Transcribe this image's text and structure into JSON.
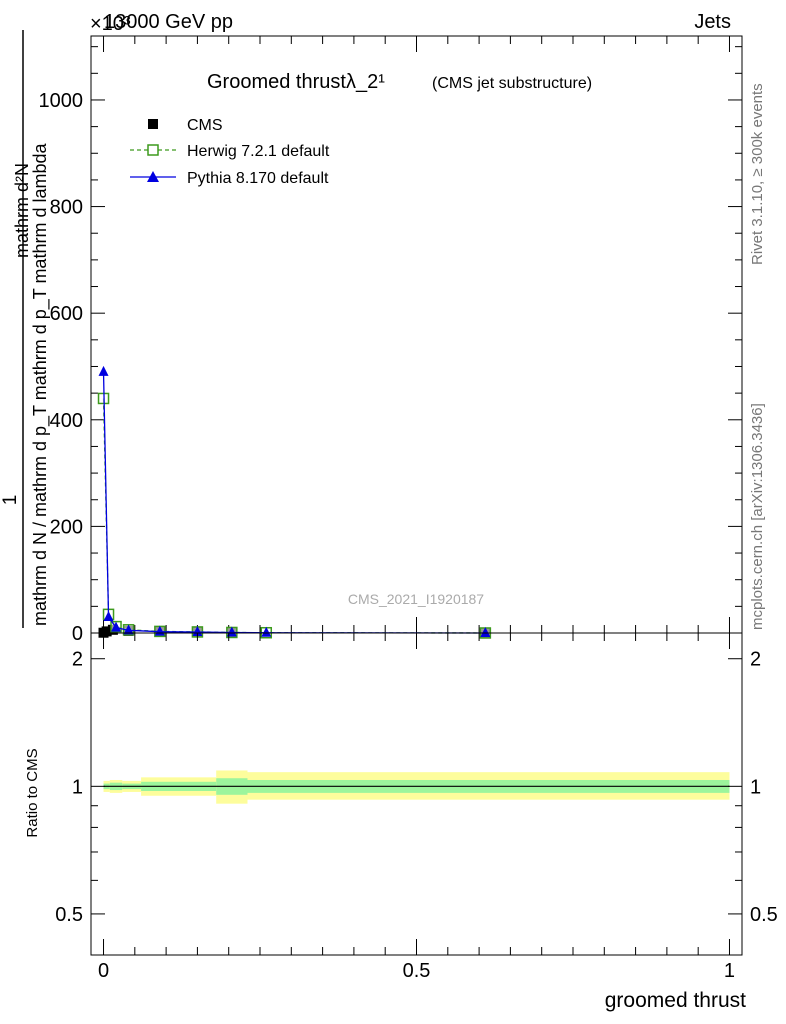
{
  "header": {
    "process": "13000 GeV pp",
    "category": "Jets",
    "exponent": "×10³"
  },
  "side_labels": {
    "rivet": "Rivet 3.1.10, ≥ 300k events",
    "mcplots": "mcplots.cern.ch [arXiv:1306.3436]"
  },
  "watermark": "CMS_2021_I1920187",
  "y_axis_title": {
    "numerator": "1",
    "denominator": "mathrm d N / mathrm d p_T mathrm d p_T mathrm d lambda",
    "top_expr": "mathrm d²N"
  },
  "colors": {
    "cms": "#000000",
    "herwig": "#3d9a1d",
    "pythia": "#0000e0",
    "band_outer": "#fdfd9c",
    "band_inner": "#9cf59c"
  },
  "chart_data": [
    {
      "type": "line",
      "panel": "main",
      "title_main": "Groomed thrustλ_2¹",
      "title_sub": "(CMS jet substructure)",
      "xlabel": "groomed thrust",
      "ylabel": "1 / (mathrm d N / mathrm d p_T mathrm d p_T mathrm d lambda) mathrm d²N",
      "xlim": [
        -0.02,
        1.02
      ],
      "ylim": [
        0,
        1120
      ],
      "y_scale_note": "values ×10³",
      "x_ticks": [
        0,
        0.5,
        1
      ],
      "x_tick_labels": [
        "0",
        "0.5",
        "1"
      ],
      "y_ticks": [
        0,
        200,
        400,
        600,
        800,
        1000
      ],
      "y_tick_labels": [
        "0",
        "200",
        "400",
        "600",
        "800",
        "1000"
      ],
      "legend": [
        "CMS",
        "Herwig 7.2.1 default",
        "Pythia 8.170 default"
      ],
      "series": [
        {
          "name": "CMS",
          "style": "marker-only",
          "x": [
            0.0,
            0.005,
            0.015,
            0.04,
            0.09,
            0.15,
            0.205,
            0.61
          ],
          "y": [
            0.5,
            3,
            6,
            4,
            2,
            1.5,
            0.6,
            0.05
          ]
        },
        {
          "name": "Herwig 7.2.1 default",
          "style": "dashed-open-square",
          "x": [
            0.0,
            0.008,
            0.02,
            0.04,
            0.09,
            0.15,
            0.205,
            0.26,
            0.61
          ],
          "y": [
            440,
            35,
            12,
            6,
            3,
            2,
            1,
            0.5,
            0.05
          ]
        },
        {
          "name": "Pythia 8.170 default",
          "style": "solid-triangle",
          "x": [
            0.0,
            0.008,
            0.02,
            0.04,
            0.09,
            0.15,
            0.205,
            0.26,
            0.61
          ],
          "y": [
            490,
            30,
            10,
            5,
            2.5,
            1.8,
            1,
            0.4,
            0.05
          ]
        }
      ]
    },
    {
      "type": "area",
      "panel": "ratio",
      "ylabel": "Ratio to CMS",
      "xlim": [
        -0.02,
        1.02
      ],
      "ylim": [
        0.4,
        2.3
      ],
      "y_scale": "log",
      "y_ticks": [
        0.5,
        1,
        2
      ],
      "y_tick_labels": [
        "0.5",
        "1",
        "2"
      ],
      "x_ticks": [
        0,
        0.5,
        1
      ],
      "x_tick_labels": [
        "0",
        "0.5",
        "1"
      ],
      "bins": [
        {
          "x0": 0.0,
          "x1": 0.01,
          "outer": [
            0.97,
            1.03
          ],
          "inner": [
            0.985,
            1.015
          ]
        },
        {
          "x0": 0.01,
          "x1": 0.03,
          "outer": [
            0.965,
            1.035
          ],
          "inner": [
            0.98,
            1.02
          ]
        },
        {
          "x0": 0.03,
          "x1": 0.06,
          "outer": [
            0.97,
            1.03
          ],
          "inner": [
            0.985,
            1.015
          ]
        },
        {
          "x0": 0.06,
          "x1": 0.18,
          "outer": [
            0.95,
            1.05
          ],
          "inner": [
            0.975,
            1.025
          ]
        },
        {
          "x0": 0.18,
          "x1": 0.23,
          "outer": [
            0.91,
            1.09
          ],
          "inner": [
            0.955,
            1.045
          ]
        },
        {
          "x0": 0.23,
          "x1": 1.0,
          "outer": [
            0.93,
            1.08
          ],
          "inner": [
            0.965,
            1.035
          ]
        }
      ]
    }
  ]
}
